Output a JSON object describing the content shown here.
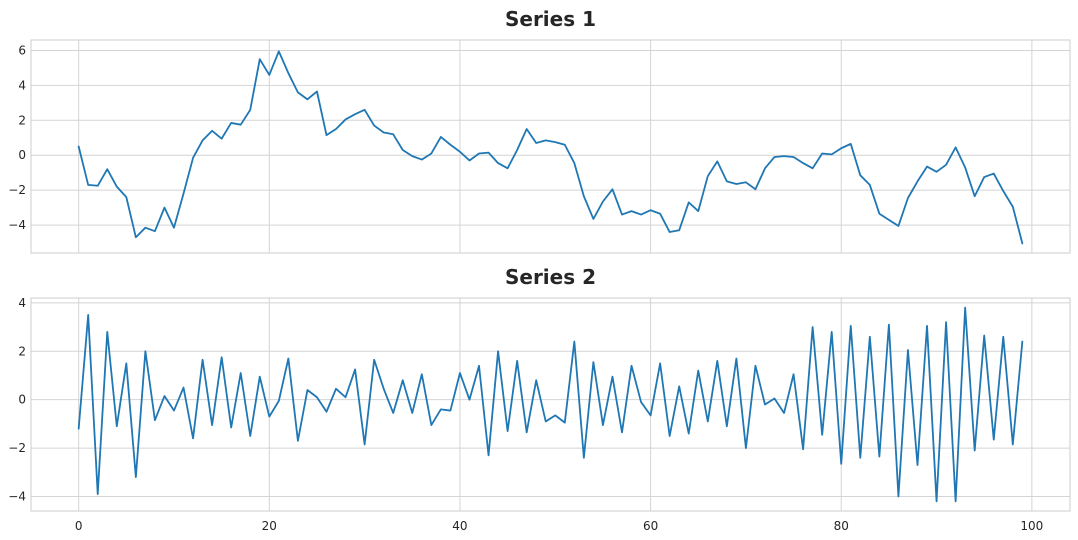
{
  "chart_data": [
    {
      "type": "line",
      "title": "Series 1",
      "xlabel": "",
      "ylabel": "",
      "xlim": [
        -5.0,
        104.0
      ],
      "ylim": [
        -5.6,
        6.6
      ],
      "xticks": [
        0,
        20,
        40,
        60,
        80,
        100
      ],
      "yticks": [
        -4,
        -2,
        0,
        2,
        4,
        6
      ],
      "x_tick_labels_visible": false,
      "grid": true,
      "color": "#1f77b4",
      "x": [
        0,
        1,
        2,
        3,
        4,
        5,
        6,
        7,
        8,
        9,
        10,
        11,
        12,
        13,
        14,
        15,
        16,
        17,
        18,
        19,
        20,
        21,
        22,
        23,
        24,
        25,
        26,
        27,
        28,
        29,
        30,
        31,
        32,
        33,
        34,
        35,
        36,
        37,
        38,
        39,
        40,
        41,
        42,
        43,
        44,
        45,
        46,
        47,
        48,
        49,
        50,
        51,
        52,
        53,
        54,
        55,
        56,
        57,
        58,
        59,
        60,
        61,
        62,
        63,
        64,
        65,
        66,
        67,
        68,
        69,
        70,
        71,
        72,
        73,
        74,
        75,
        76,
        77,
        78,
        79,
        80,
        81,
        82,
        83,
        84,
        85,
        86,
        87,
        88,
        89,
        90,
        91,
        92,
        93,
        94,
        95,
        96,
        97,
        98,
        99
      ],
      "y": [
        0.5,
        -1.7,
        -1.75,
        -0.8,
        -1.8,
        -2.4,
        -4.7,
        -4.15,
        -4.35,
        -3.0,
        -4.15,
        -2.2,
        -0.15,
        0.85,
        1.4,
        0.95,
        1.85,
        1.75,
        2.6,
        5.5,
        4.6,
        5.95,
        4.7,
        3.6,
        3.2,
        3.65,
        1.15,
        1.5,
        2.05,
        2.35,
        2.6,
        1.7,
        1.3,
        1.2,
        0.3,
        -0.05,
        -0.25,
        0.1,
        1.05,
        0.6,
        0.2,
        -0.3,
        0.1,
        0.15,
        -0.45,
        -0.75,
        0.3,
        1.5,
        0.7,
        0.85,
        0.75,
        0.6,
        -0.45,
        -2.35,
        -3.65,
        -2.65,
        -1.95,
        -3.4,
        -3.2,
        -3.4,
        -3.15,
        -3.35,
        -4.4,
        -4.3,
        -2.7,
        -3.2,
        -1.2,
        -0.35,
        -1.5,
        -1.65,
        -1.55,
        -1.95,
        -0.75,
        -0.1,
        -0.05,
        -0.1,
        -0.45,
        -0.75,
        0.1,
        0.05,
        0.4,
        0.65,
        -1.15,
        -1.7,
        -3.35,
        -3.7,
        -4.05,
        -2.45,
        -1.5,
        -0.65,
        -0.95,
        -0.55,
        0.45,
        -0.7,
        -2.35,
        -1.25,
        -1.05,
        -2.05,
        -2.95,
        -5.05
      ]
    },
    {
      "type": "line",
      "title": "Series 2",
      "xlabel": "",
      "ylabel": "",
      "xlim": [
        -5.0,
        104.0
      ],
      "ylim": [
        -4.6,
        4.2
      ],
      "xticks": [
        0,
        20,
        40,
        60,
        80,
        100
      ],
      "yticks": [
        -4,
        -2,
        0,
        2,
        4
      ],
      "x_tick_labels_visible": true,
      "grid": true,
      "color": "#1f77b4",
      "x": [
        0,
        1,
        2,
        3,
        4,
        5,
        6,
        7,
        8,
        9,
        10,
        11,
        12,
        13,
        14,
        15,
        16,
        17,
        18,
        19,
        20,
        21,
        22,
        23,
        24,
        25,
        26,
        27,
        28,
        29,
        30,
        31,
        32,
        33,
        34,
        35,
        36,
        37,
        38,
        39,
        40,
        41,
        42,
        43,
        44,
        45,
        46,
        47,
        48,
        49,
        50,
        51,
        52,
        53,
        54,
        55,
        56,
        57,
        58,
        59,
        60,
        61,
        62,
        63,
        64,
        65,
        66,
        67,
        68,
        69,
        70,
        71,
        72,
        73,
        74,
        75,
        76,
        77,
        78,
        79,
        80,
        81,
        82,
        83,
        84,
        85,
        86,
        87,
        88,
        89,
        90,
        91,
        92,
        93,
        94,
        95,
        96,
        97,
        98,
        99
      ],
      "y": [
        -1.2,
        3.5,
        -3.9,
        2.8,
        -1.1,
        1.5,
        -3.2,
        2.0,
        -0.85,
        0.15,
        -0.45,
        0.5,
        -1.6,
        1.65,
        -1.05,
        1.75,
        -1.15,
        1.1,
        -1.5,
        0.95,
        -0.7,
        -0.05,
        1.7,
        -1.7,
        0.4,
        0.1,
        -0.5,
        0.45,
        0.1,
        1.25,
        -1.85,
        1.65,
        0.45,
        -0.55,
        0.8,
        -0.55,
        1.05,
        -1.05,
        -0.4,
        -0.45,
        1.1,
        0.0,
        1.4,
        -2.3,
        2.0,
        -1.3,
        1.6,
        -1.35,
        0.8,
        -0.9,
        -0.65,
        -0.95,
        2.4,
        -2.4,
        1.55,
        -1.05,
        0.95,
        -1.35,
        1.4,
        -0.1,
        -0.65,
        1.5,
        -1.5,
        0.55,
        -1.4,
        1.2,
        -0.9,
        1.6,
        -1.1,
        1.7,
        -2.0,
        1.4,
        -0.2,
        0.05,
        -0.55,
        1.05,
        -2.05,
        3.0,
        -1.45,
        2.8,
        -2.65,
        3.05,
        -2.4,
        2.6,
        -2.35,
        3.1,
        -4.0,
        2.05,
        -2.7,
        3.05,
        -4.2,
        3.2,
        -4.2,
        3.8,
        -2.1,
        2.65,
        -1.65,
        2.6,
        -1.85,
        2.4
      ]
    }
  ]
}
